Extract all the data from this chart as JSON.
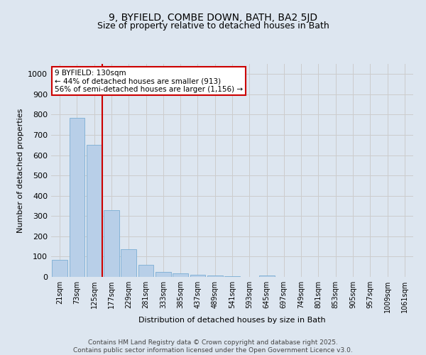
{
  "title_line1": "9, BYFIELD, COMBE DOWN, BATH, BA2 5JD",
  "title_line2": "Size of property relative to detached houses in Bath",
  "xlabel": "Distribution of detached houses by size in Bath",
  "ylabel": "Number of detached properties",
  "bar_values": [
    85,
    785,
    650,
    330,
    135,
    60,
    25,
    18,
    10,
    7,
    5,
    0,
    7,
    0,
    0,
    0,
    0,
    0,
    0,
    0,
    0
  ],
  "bin_labels": [
    "21sqm",
    "73sqm",
    "125sqm",
    "177sqm",
    "229sqm",
    "281sqm",
    "333sqm",
    "385sqm",
    "437sqm",
    "489sqm",
    "541sqm",
    "593sqm",
    "645sqm",
    "697sqm",
    "749sqm",
    "801sqm",
    "853sqm",
    "905sqm",
    "957sqm",
    "1009sqm",
    "1061sqm"
  ],
  "bar_color": "#b8cfe8",
  "bar_edge_color": "#7aadd4",
  "property_bin_index": 2,
  "annotation_line1": "9 BYFIELD: 130sqm",
  "annotation_line2": "← 44% of detached houses are smaller (913)",
  "annotation_line3": "56% of semi-detached houses are larger (1,156) →",
  "annotation_box_color": "#ffffff",
  "annotation_border_color": "#cc0000",
  "vline_color": "#cc0000",
  "ylim": [
    0,
    1050
  ],
  "yticks": [
    0,
    100,
    200,
    300,
    400,
    500,
    600,
    700,
    800,
    900,
    1000
  ],
  "grid_color": "#cccccc",
  "background_color": "#dde6f0",
  "footer_line1": "Contains HM Land Registry data © Crown copyright and database right 2025.",
  "footer_line2": "Contains public sector information licensed under the Open Government Licence v3.0."
}
